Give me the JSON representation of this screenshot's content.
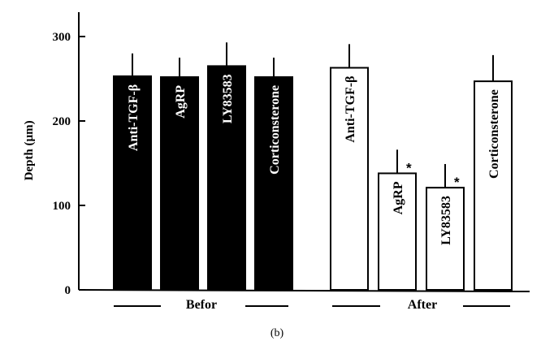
{
  "chart_data": {
    "type": "bar",
    "caption": "(b)",
    "ylabel": "Depth (µm)",
    "ylim": [
      0,
      350
    ],
    "yticks": [
      0,
      100,
      200,
      300
    ],
    "groups": [
      {
        "label": "Befor",
        "fill": "black",
        "bars": [
          {
            "label": "Anti-TGF-β",
            "value": 253,
            "error": 27
          },
          {
            "label": "AgRP",
            "value": 252,
            "error": 23
          },
          {
            "label": "LY83583",
            "value": 265,
            "error": 28
          },
          {
            "label": "Corticonsterone",
            "value": 252,
            "error": 23
          }
        ]
      },
      {
        "label": "After",
        "fill": "white",
        "bars": [
          {
            "label": "Anti-TGF-β",
            "value": 263,
            "error": 28
          },
          {
            "label": "AgRP",
            "value": 138,
            "error": 28,
            "significance": "*"
          },
          {
            "label": "LY83583",
            "value": 121,
            "error": 28,
            "significance": "*"
          },
          {
            "label": "Corticonsterone",
            "value": 247,
            "error": 31
          }
        ]
      }
    ],
    "colors": {
      "befor": "#000000",
      "after": "#ffffff",
      "stroke": "#000000"
    }
  }
}
